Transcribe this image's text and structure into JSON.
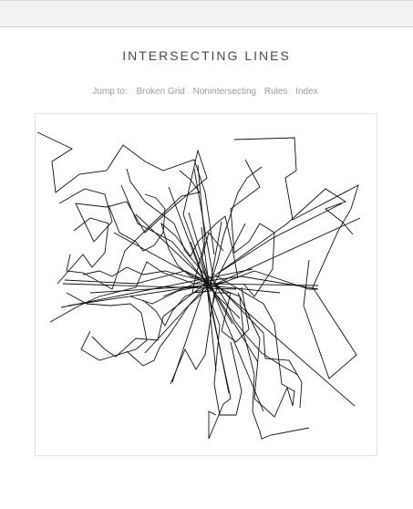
{
  "page": {
    "title": "INTERSECTING LINES",
    "jump_label": "Jump to:",
    "nav": [
      {
        "label": "Broken Grid"
      },
      {
        "label": "Nonintersecting"
      },
      {
        "label": "Rules"
      },
      {
        "label": "Index"
      }
    ]
  },
  "colors": {
    "line": "#111111",
    "topbar": "#f2f2f2",
    "title": "#4a4a4a",
    "nav": "#9a9a9a"
  }
}
